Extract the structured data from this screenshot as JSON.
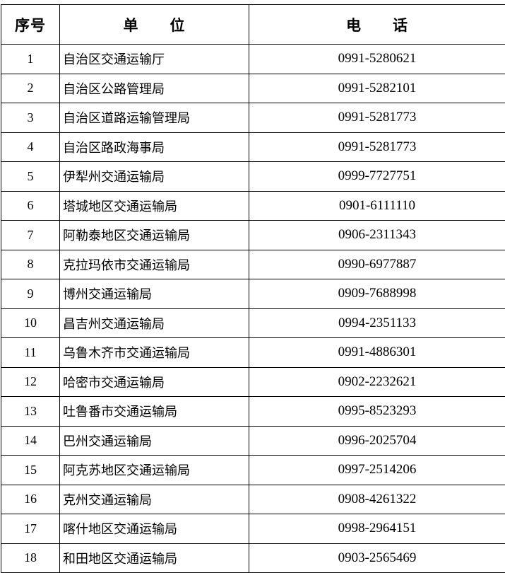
{
  "headers": {
    "index": "序号",
    "unit": "单　　位",
    "phone": "电　　话"
  },
  "rows": [
    {
      "index": "1",
      "unit": "自治区交通运输厅",
      "phone": "0991-5280621"
    },
    {
      "index": "2",
      "unit": "自治区公路管理局",
      "phone": "0991-5282101"
    },
    {
      "index": "3",
      "unit": "自治区道路运输管理局",
      "phone": "0991-5281773"
    },
    {
      "index": "4",
      "unit": "自治区路政海事局",
      "phone": "0991-5281773"
    },
    {
      "index": "5",
      "unit": "伊犁州交通运输局",
      "phone": "0999-7727751"
    },
    {
      "index": "6",
      "unit": "塔城地区交通运输局",
      "phone": "0901-6111110"
    },
    {
      "index": "7",
      "unit": "阿勒泰地区交通运输局",
      "phone": "0906-2311343"
    },
    {
      "index": "8",
      "unit": "克拉玛依市交通运输局",
      "phone": "0990-6977887"
    },
    {
      "index": "9",
      "unit": "博州交通运输局",
      "phone": "0909-7688998"
    },
    {
      "index": "10",
      "unit": "昌吉州交通运输局",
      "phone": "0994-2351133"
    },
    {
      "index": "11",
      "unit": "乌鲁木齐市交通运输局",
      "phone": "0991-4886301"
    },
    {
      "index": "12",
      "unit": "哈密市交通运输局",
      "phone": "0902-2232621"
    },
    {
      "index": "13",
      "unit": "吐鲁番市交通运输局",
      "phone": "0995-8523293"
    },
    {
      "index": "14",
      "unit": "巴州交通运输局",
      "phone": "0996-2025704"
    },
    {
      "index": "15",
      "unit": "阿克苏地区交通运输局",
      "phone": "0997-2514206"
    },
    {
      "index": "16",
      "unit": "克州交通运输局",
      "phone": "0908-4261322"
    },
    {
      "index": "17",
      "unit": "喀什地区交通运输局",
      "phone": "0998-2964151"
    },
    {
      "index": "18",
      "unit": "和田地区交通运输局",
      "phone": "0903-2565469"
    }
  ]
}
